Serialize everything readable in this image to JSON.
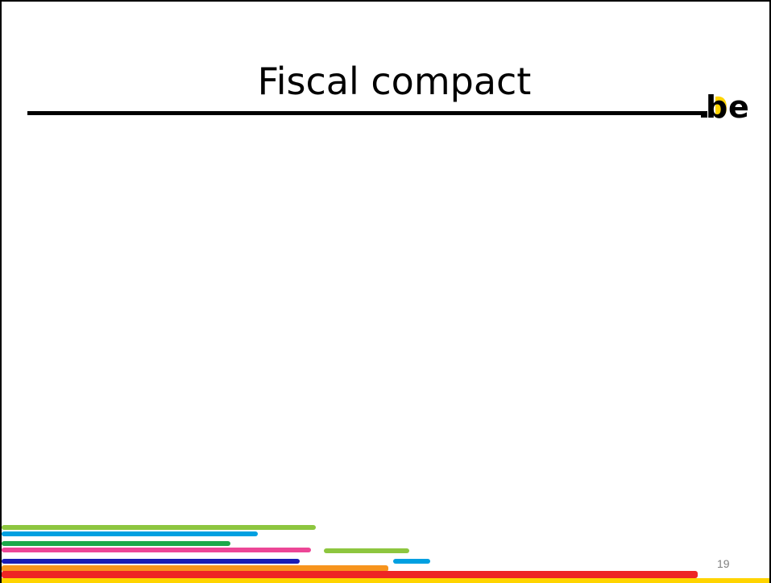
{
  "slide": {
    "title": "Fiscal compact",
    "page_number": "19",
    "logo": {
      "text_dot": ".",
      "text_b": "b",
      "text_e": "e",
      "name": "belgium-be-logo"
    }
  },
  "colors": {
    "title_rule": "#000000",
    "stripes": {
      "lime": "#8DC63F",
      "sky": "#00A0E1",
      "green": "#1BA84A",
      "pink": "#EC4696",
      "navy": "#1A1CB5",
      "orange": "#F7941D",
      "red": "#EE2524",
      "yellow": "#FFD400"
    },
    "logo_yellow": "#FFD400",
    "logo_black": "#000000",
    "page_number": "#7F7F7F"
  }
}
